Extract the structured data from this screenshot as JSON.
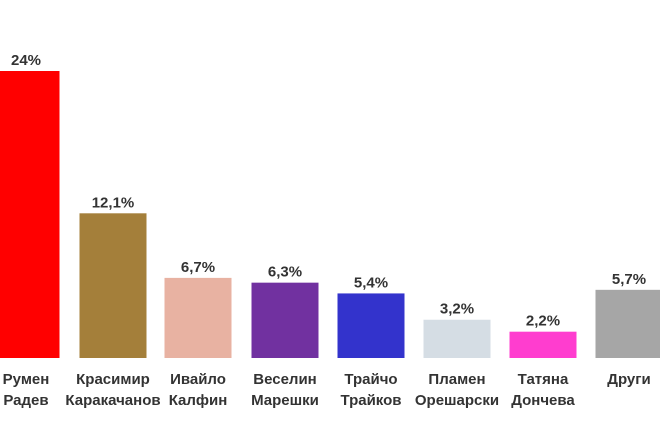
{
  "chart_data": {
    "type": "bar",
    "categories": [
      [
        "Румен",
        "Радев"
      ],
      [
        "Красимир",
        "Каракачанов"
      ],
      [
        "Ивайло",
        "Калфин"
      ],
      [
        "Веселин",
        "Марешки"
      ],
      [
        "Трайчо",
        "Трайков"
      ],
      [
        "Пламен",
        "Орешарски"
      ],
      [
        "Татяна",
        "Дончева"
      ],
      [
        "Други"
      ]
    ],
    "values": [
      24,
      12.1,
      6.7,
      6.3,
      5.4,
      3.2,
      2.2,
      5.7
    ],
    "value_labels": [
      "24%",
      "12,1%",
      "6,7%",
      "6,3%",
      "5,4%",
      "3,2%",
      "2,2%",
      "5,7%"
    ],
    "colors": [
      "#ff0000",
      "#a47f3a",
      "#e8b2a2",
      "#7131a0",
      "#3333cc",
      "#d5dde4",
      "#ff3dcf",
      "#a6a6a6"
    ],
    "ylim": [
      0,
      24
    ],
    "grid": false,
    "legend": "none"
  }
}
